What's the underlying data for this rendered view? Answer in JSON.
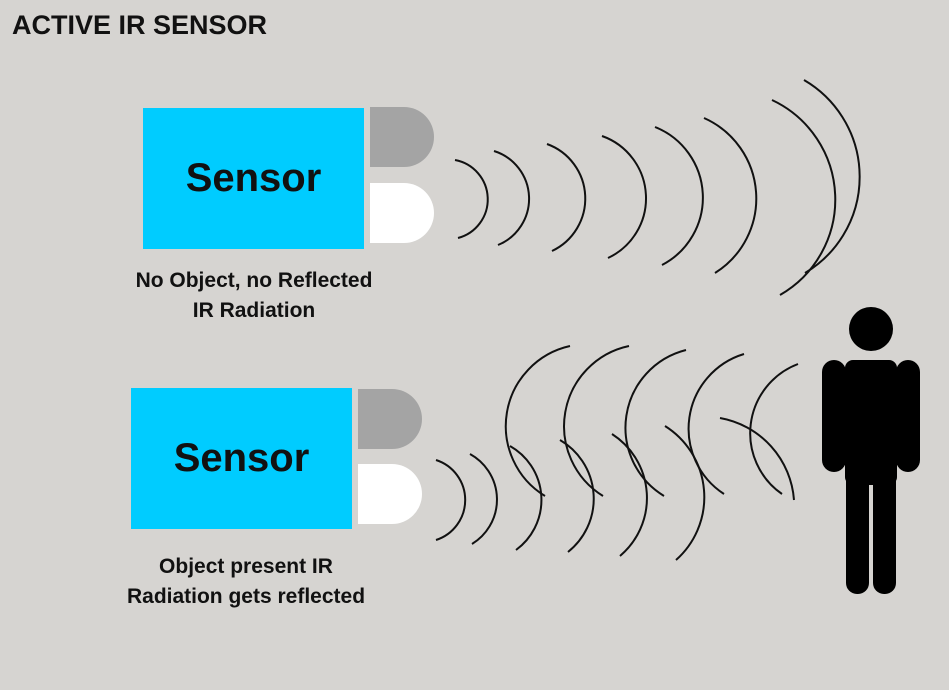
{
  "title": "ACTIVE IR SENSOR",
  "colors": {
    "background": "#d6d4d1",
    "sensor": "#00ccff",
    "emitter": "#a4a4a4",
    "receiver": "#ffffff",
    "person": "#000000"
  },
  "top": {
    "sensor_label": "Sensor",
    "caption_line1": "No Object, no Reflected",
    "caption_line2": "IR Radiation"
  },
  "bottom": {
    "sensor_label": "Sensor",
    "caption_line1": "Object present IR",
    "caption_line2": "Radiation gets reflected"
  },
  "icons": [
    "person-icon"
  ]
}
